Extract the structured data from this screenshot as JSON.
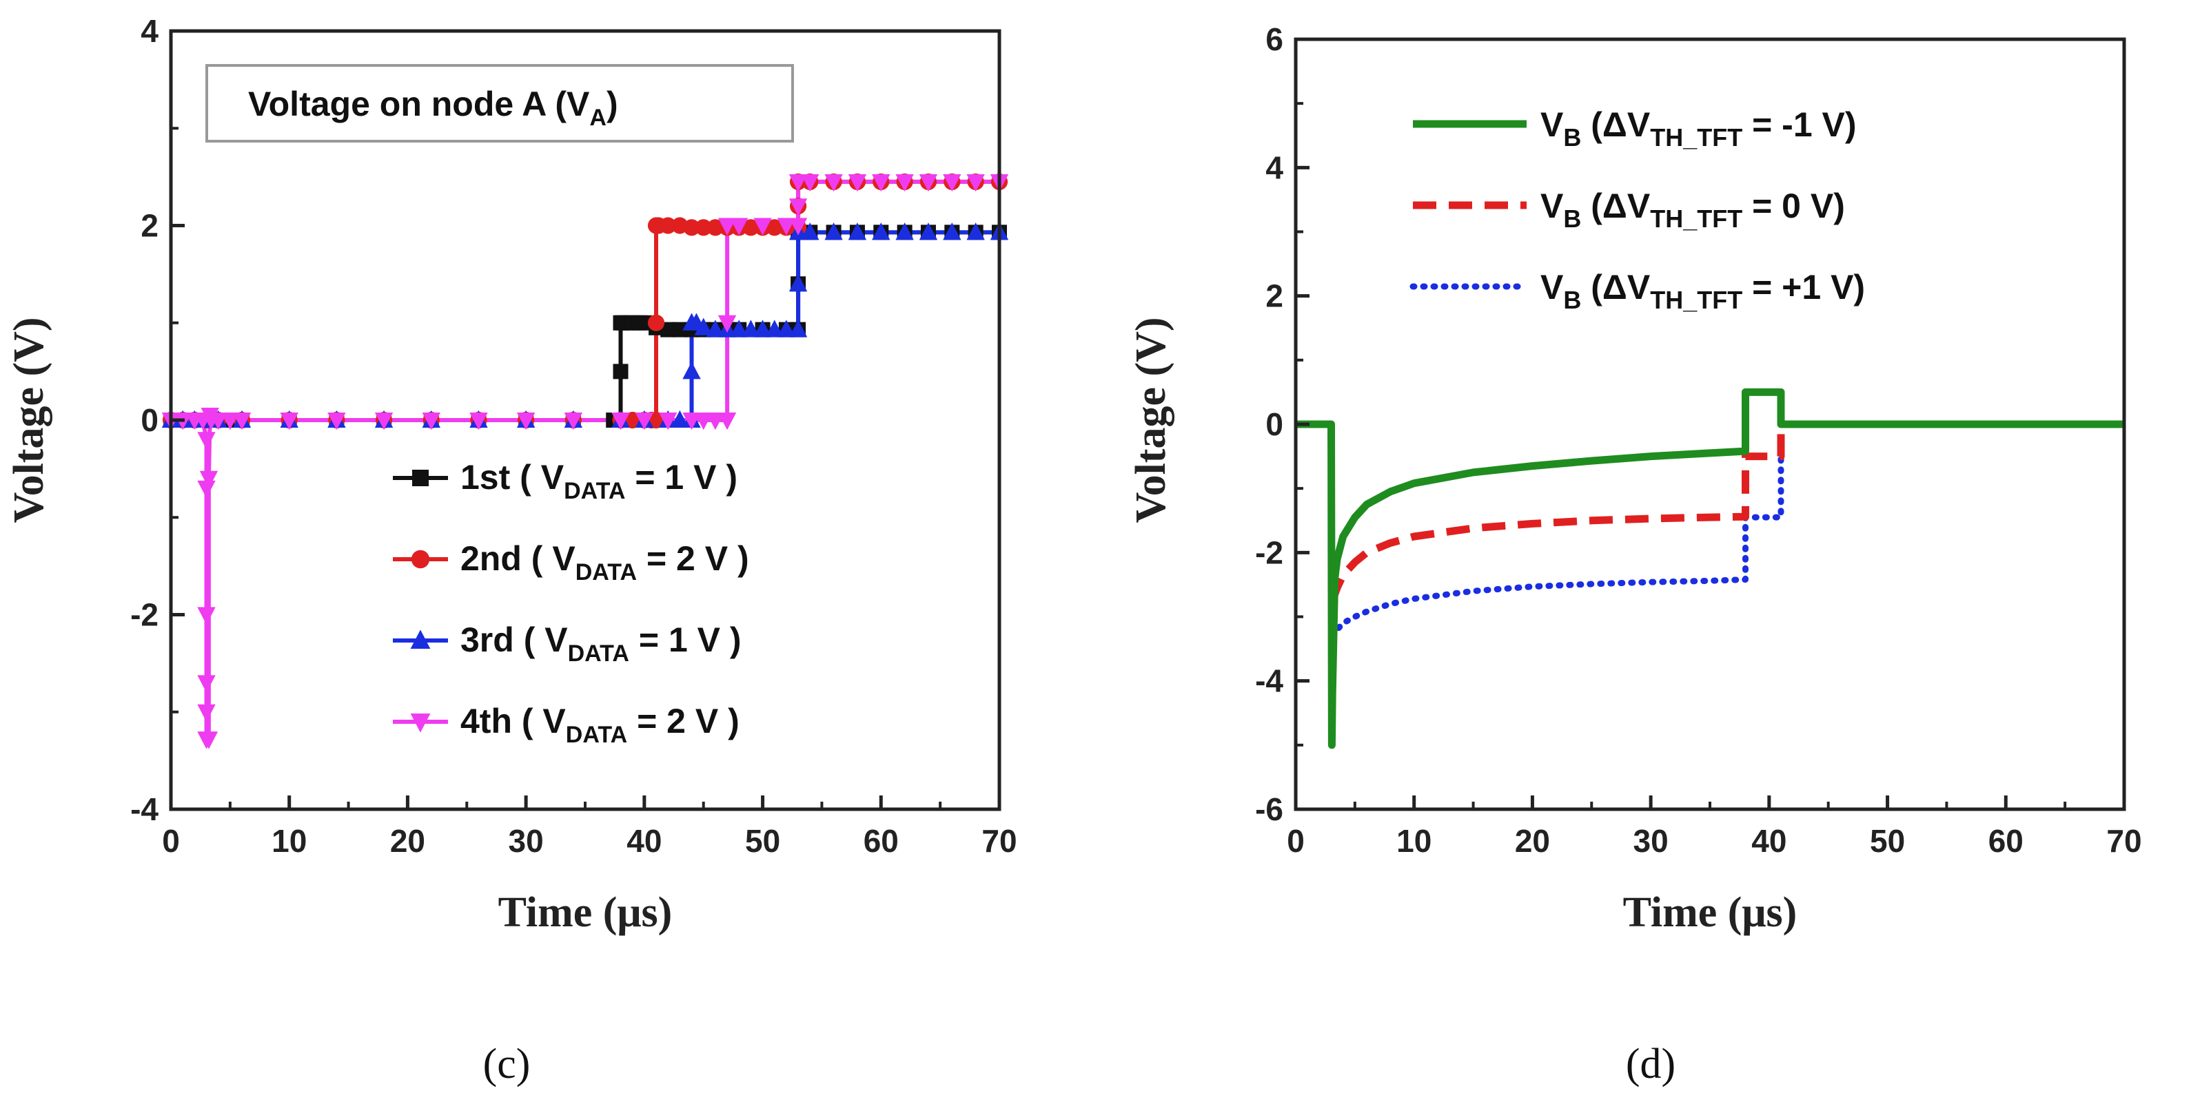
{
  "chart_data": [
    {
      "type": "line",
      "panel_label": "(c)",
      "title": "Voltage on node A (V",
      "title_sub": "A",
      "title_close": ")",
      "xlabel": "Time (μs)",
      "ylabel": "Voltage (V)",
      "xlim": [
        0,
        70
      ],
      "ylim": [
        -4,
        4
      ],
      "xticks": [
        0,
        10,
        20,
        30,
        40,
        50,
        60,
        70
      ],
      "yticks": [
        -4,
        -2,
        0,
        2,
        4
      ],
      "legend_position": "center-right",
      "series": [
        {
          "name": "1st",
          "label_pre": "1st  ( V",
          "label_sub": "DATA",
          "label_post": " = 1 V )",
          "color": "#111111",
          "marker": "square",
          "x": [
            0,
            1,
            2,
            3,
            4,
            5,
            6,
            10,
            14,
            18,
            22,
            26,
            30,
            34,
            37.4,
            37.8,
            38,
            38,
            38,
            38.2,
            38.6,
            39,
            39.6,
            40,
            41,
            42,
            43,
            44,
            45,
            46,
            47,
            48,
            50,
            52,
            53,
            53,
            53,
            54,
            56,
            58,
            60,
            62,
            64,
            66,
            68,
            70
          ],
          "values": [
            0,
            0,
            0,
            0,
            0,
            0,
            0,
            0,
            0,
            0,
            0,
            0,
            0,
            0,
            0,
            0,
            0,
            0.5,
            1.0,
            1.0,
            1.0,
            1.0,
            1.0,
            1.0,
            0.95,
            0.93,
            0.93,
            0.93,
            0.93,
            0.93,
            0.93,
            0.93,
            0.93,
            0.93,
            0.93,
            1.4,
            1.93,
            1.93,
            1.93,
            1.93,
            1.93,
            1.93,
            1.93,
            1.93,
            1.93,
            1.93
          ]
        },
        {
          "name": "2nd",
          "label_pre": "2nd ( V",
          "label_sub": "DATA",
          "label_post": " = 2 V )",
          "color": "#e02020",
          "marker": "circle",
          "x": [
            0,
            1,
            2,
            3,
            4,
            6,
            10,
            14,
            18,
            22,
            26,
            30,
            34,
            38,
            39,
            40,
            40.6,
            41,
            41,
            41,
            41.2,
            42,
            43,
            44,
            45,
            46,
            47,
            48,
            49,
            50,
            51,
            52,
            53,
            53,
            53,
            54,
            56,
            58,
            60,
            62,
            64,
            66,
            68,
            70
          ],
          "values": [
            0,
            0,
            0,
            0,
            0,
            0,
            0,
            0,
            0,
            0,
            0,
            0,
            0,
            0,
            0,
            0,
            0,
            0,
            1.0,
            2.0,
            2.0,
            2.0,
            2.0,
            1.98,
            1.98,
            1.98,
            1.98,
            1.98,
            1.98,
            1.98,
            1.98,
            1.98,
            1.98,
            2.2,
            2.45,
            2.45,
            2.45,
            2.45,
            2.45,
            2.45,
            2.45,
            2.45,
            2.45,
            2.45
          ]
        },
        {
          "name": "3rd",
          "label_pre": "3rd  ( V",
          "label_sub": "DATA",
          "label_post": " = 1 V )",
          "color": "#1a2ee0",
          "marker": "triangle-up",
          "x": [
            0,
            1,
            2,
            3,
            4,
            6,
            10,
            14,
            18,
            22,
            26,
            30,
            34,
            38,
            40,
            42,
            43,
            44,
            44,
            44,
            44.4,
            45,
            46,
            47,
            48,
            49,
            50,
            51,
            52,
            53,
            53,
            53,
            54,
            56,
            58,
            60,
            62,
            64,
            66,
            68,
            70
          ],
          "values": [
            0,
            0,
            0,
            0,
            0,
            0,
            0,
            0,
            0,
            0,
            0,
            0,
            0,
            0,
            0,
            0,
            0,
            0,
            0.5,
            1.0,
            1.0,
            0.95,
            0.93,
            0.93,
            0.93,
            0.93,
            0.93,
            0.93,
            0.93,
            0.93,
            1.4,
            1.93,
            1.93,
            1.93,
            1.93,
            1.93,
            1.93,
            1.93,
            1.93,
            1.93,
            1.93
          ]
        },
        {
          "name": "4th",
          "label_pre": "4th  ( V",
          "label_sub": "DATA",
          "label_post": " = 2 V )",
          "color": "#f03cf0",
          "marker": "triangle-down",
          "x": [
            0,
            1,
            2,
            2.7,
            3,
            3,
            3,
            3,
            3,
            3,
            3.2,
            3.2,
            3.3,
            3.4,
            4,
            5,
            6,
            10,
            14,
            18,
            22,
            26,
            30,
            34,
            38,
            40,
            42,
            44,
            45,
            46,
            47,
            47,
            47,
            48,
            50,
            52,
            53,
            53,
            53,
            54,
            56,
            58,
            60,
            62,
            64,
            66,
            68,
            70
          ],
          "values": [
            0,
            0,
            0,
            0,
            -0.2,
            -0.7,
            -2.0,
            -2.7,
            -3.0,
            -3.28,
            -3.28,
            -0.6,
            0.05,
            0,
            0,
            0,
            0,
            0,
            0,
            0,
            0,
            0,
            0,
            0,
            0,
            0,
            0,
            0,
            0,
            0,
            0,
            1.0,
            2.0,
            2.0,
            2.0,
            2.0,
            2.0,
            2.2,
            2.45,
            2.45,
            2.45,
            2.45,
            2.45,
            2.45,
            2.45,
            2.45,
            2.45,
            2.45
          ]
        }
      ]
    },
    {
      "type": "line",
      "panel_label": "(d)",
      "xlabel": "Time (μs)",
      "ylabel": "Voltage (V)",
      "xlim": [
        0,
        70
      ],
      "ylim": [
        -6,
        6
      ],
      "xticks": [
        0,
        10,
        20,
        30,
        40,
        50,
        60,
        70
      ],
      "yticks": [
        -6,
        -4,
        -2,
        0,
        2,
        4,
        6
      ],
      "legend_position": "top-center",
      "series": [
        {
          "name": "VB (ΔVTH_TFT = -1 V)",
          "label_main": "V",
          "label_sub": "B",
          "label_mid": " (ΔV",
          "label_sub2": "TH_TFT",
          "label_post": " = -1 V)",
          "color": "#1f8c1f",
          "dash": "solid",
          "x": [
            0,
            3,
            3.05,
            3.1,
            3.3,
            3.5,
            4,
            5,
            6,
            8,
            10,
            15,
            20,
            25,
            30,
            35,
            38,
            38,
            38,
            41,
            41,
            41,
            42,
            50,
            60,
            70
          ],
          "values": [
            0,
            0,
            -5.0,
            -4.2,
            -2.4,
            -2.1,
            -1.75,
            -1.45,
            -1.25,
            -1.05,
            -0.92,
            -0.75,
            -0.65,
            -0.57,
            -0.5,
            -0.45,
            -0.42,
            0,
            0.5,
            0.5,
            0.1,
            0,
            0,
            0,
            0,
            0
          ]
        },
        {
          "name": "VB (ΔVTH_TFT = 0 V)",
          "label_main": "V",
          "label_sub": "B",
          "label_mid": " (ΔV",
          "label_sub2": "TH_TFT",
          "label_post": " = 0 V)",
          "color": "#e02020",
          "dash": "dashed",
          "x": [
            3.1,
            3.5,
            4,
            5,
            6,
            8,
            10,
            15,
            20,
            25,
            30,
            35,
            38,
            38,
            38,
            41,
            41
          ],
          "values": [
            -2.75,
            -2.55,
            -2.35,
            -2.15,
            -2.0,
            -1.85,
            -1.75,
            -1.62,
            -1.55,
            -1.5,
            -1.47,
            -1.45,
            -1.44,
            -0.9,
            -0.5,
            -0.5,
            -0.1
          ]
        },
        {
          "name": "VB (ΔVTH_TFT = +1 V)",
          "label_main": "V",
          "label_sub": "B",
          "label_mid": " (ΔV",
          "label_sub2": "TH_TFT",
          "label_post": " = +1 V)",
          "color": "#1a2ee0",
          "dash": "dotted",
          "x": [
            3.1,
            3.5,
            4,
            5,
            6,
            8,
            10,
            15,
            20,
            25,
            30,
            35,
            38,
            38,
            38,
            41,
            41
          ],
          "values": [
            -3.3,
            -3.2,
            -3.1,
            -3.0,
            -2.92,
            -2.8,
            -2.72,
            -2.6,
            -2.53,
            -2.49,
            -2.46,
            -2.44,
            -2.42,
            -1.9,
            -1.45,
            -1.45,
            -0.1
          ]
        }
      ]
    }
  ]
}
